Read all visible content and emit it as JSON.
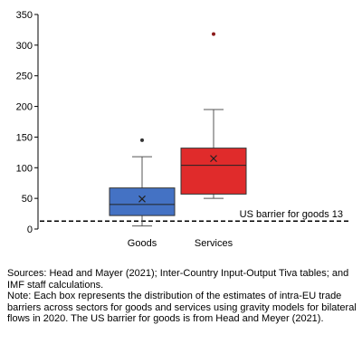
{
  "chart_data": {
    "type": "box",
    "title": "",
    "xlabel": "",
    "ylabel": "",
    "ylim": [
      0,
      350
    ],
    "yticks": [
      0,
      50,
      100,
      150,
      200,
      250,
      300,
      350
    ],
    "categories": [
      "Goods",
      "Services"
    ],
    "boxes": [
      {
        "category": "Goods",
        "min": 5,
        "q1": 22,
        "median": 40,
        "q3": 67,
        "max": 118,
        "mean": 49,
        "outliers": [
          145
        ],
        "color": "#4472C4"
      },
      {
        "category": "Services",
        "min": 50,
        "q1": 57,
        "median": 104,
        "q3": 132,
        "max": 195,
        "mean": 115,
        "outliers": [
          318
        ],
        "color": "#E02B2B"
      }
    ],
    "reference_line": {
      "label": "US barrier for goods 13",
      "value": 13,
      "style": "dashed"
    }
  },
  "notes": {
    "sources": "Sources: Head and Mayer (2021); Inter-Country Input-Output Tiva tables; and IMF staff calculations.",
    "note": "Note: Each box represents the distribution of the estimates of intra-EU trade barriers across sectors for goods and services using gravity models for bilateral flows in 2020. The US barrier for goods is from Head and Meyer (2021)."
  }
}
